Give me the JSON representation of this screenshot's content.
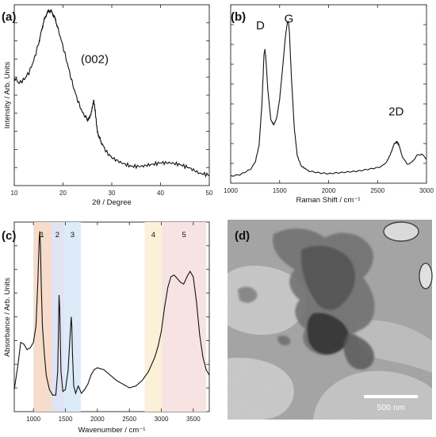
{
  "chart_data": [
    {
      "panel": "(a)",
      "type": "line",
      "xlabel": "2θ / Degree",
      "ylabel": "Intensity / Arb. Units",
      "xlim": [
        10,
        50
      ],
      "xticks": [
        10,
        20,
        30,
        40,
        50
      ],
      "ylim": [
        0,
        1
      ],
      "yticks_labeled": false,
      "annotations": [
        {
          "text": "(002)",
          "x": 26.5,
          "y": 0.62
        }
      ],
      "series": [
        {
          "x": [
            10,
            11,
            12,
            13,
            14,
            15,
            15.5,
            16,
            16.5,
            17,
            17.5,
            18,
            18.5,
            19,
            20,
            21,
            22,
            23,
            24,
            25,
            25.5,
            26,
            26.3,
            26.6,
            27,
            27.5,
            28,
            29,
            30,
            32,
            34,
            36,
            38,
            40,
            42,
            44,
            46,
            48,
            50
          ],
          "y": [
            0.6,
            0.57,
            0.59,
            0.63,
            0.7,
            0.8,
            0.86,
            0.92,
            0.96,
            0.985,
            0.985,
            0.965,
            0.93,
            0.88,
            0.78,
            0.67,
            0.56,
            0.47,
            0.4,
            0.36,
            0.37,
            0.43,
            0.47,
            0.41,
            0.3,
            0.25,
            0.22,
            0.17,
            0.14,
            0.11,
            0.09,
            0.09,
            0.1,
            0.11,
            0.11,
            0.1,
            0.08,
            0.05,
            0.04
          ]
        }
      ]
    },
    {
      "panel": "(b)",
      "type": "line",
      "xlabel": "Raman Shift / cm⁻¹",
      "ylabel": "",
      "xlim": [
        1000,
        3000
      ],
      "xticks": [
        1000,
        1500,
        2000,
        2500,
        3000
      ],
      "ylim": [
        0,
        1
      ],
      "yticks_labeled": false,
      "annotations": [
        {
          "text": "D",
          "x": 1335,
          "y": 0.85
        },
        {
          "text": "G",
          "x": 1595,
          "y": 0.88
        },
        {
          "text": "2D",
          "x": 2690,
          "y": 0.32
        }
      ],
      "series": [
        {
          "x": [
            1000,
            1100,
            1200,
            1250,
            1290,
            1320,
            1340,
            1350,
            1360,
            1380,
            1410,
            1440,
            1470,
            1500,
            1530,
            1560,
            1580,
            1590,
            1600,
            1620,
            1650,
            1680,
            1720,
            1800,
            1900,
            2000,
            2100,
            2200,
            2300,
            2400,
            2500,
            2550,
            2600,
            2640,
            2670,
            2700,
            2720,
            2750,
            2800,
            2850,
            2900,
            2950,
            3000
          ],
          "y": [
            0.02,
            0.03,
            0.06,
            0.1,
            0.2,
            0.45,
            0.73,
            0.76,
            0.7,
            0.52,
            0.35,
            0.32,
            0.36,
            0.47,
            0.65,
            0.84,
            0.92,
            0.92,
            0.86,
            0.6,
            0.3,
            0.14,
            0.08,
            0.05,
            0.04,
            0.035,
            0.04,
            0.045,
            0.05,
            0.06,
            0.07,
            0.08,
            0.11,
            0.16,
            0.21,
            0.22,
            0.2,
            0.14,
            0.09,
            0.1,
            0.14,
            0.15,
            0.12
          ]
        }
      ]
    },
    {
      "panel": "(c)",
      "type": "line",
      "xlabel": "Wavenumber / cm⁻¹",
      "ylabel": "Absorbance / Arb. Units",
      "xlim": [
        700,
        3750
      ],
      "xticks": [
        1000,
        1500,
        2000,
        2500,
        3000,
        3500
      ],
      "ylim": [
        0,
        1
      ],
      "yticks_labeled": false,
      "bands": [
        {
          "label": "1",
          "x0": 1000,
          "x1": 1270,
          "color": "#f7dccb"
        },
        {
          "label": "2",
          "x0": 1270,
          "x1": 1480,
          "color": "#dfe3f2"
        },
        {
          "label": "3",
          "x0": 1480,
          "x1": 1740,
          "color": "#dcebf7"
        },
        {
          "label": "4",
          "x0": 2740,
          "x1": 3010,
          "color": "#fbf0d8"
        },
        {
          "label": "5",
          "x0": 3010,
          "x1": 3700,
          "color": "#f7e4e2"
        }
      ],
      "series": [
        {
          "x": [
            700,
            760,
            800,
            850,
            900,
            950,
            1000,
            1040,
            1070,
            1090,
            1100,
            1110,
            1120,
            1140,
            1170,
            1200,
            1250,
            1300,
            1350,
            1380,
            1400,
            1410,
            1430,
            1460,
            1500,
            1540,
            1570,
            1590,
            1600,
            1610,
            1630,
            1660,
            1700,
            1750,
            1800,
            1850,
            1900,
            1950,
            2000,
            2100,
            2200,
            2300,
            2400,
            2500,
            2600,
            2700,
            2800,
            2900,
            2950,
            3000,
            3050,
            3100,
            3150,
            3200,
            3250,
            3300,
            3350,
            3400,
            3450,
            3500,
            3550,
            3600,
            3650,
            3700,
            3750
          ],
          "y": [
            0.1,
            0.24,
            0.36,
            0.35,
            0.32,
            0.33,
            0.36,
            0.45,
            0.7,
            0.93,
            0.97,
            0.88,
            0.7,
            0.45,
            0.3,
            0.18,
            0.1,
            0.07,
            0.07,
            0.2,
            0.62,
            0.55,
            0.2,
            0.09,
            0.1,
            0.2,
            0.38,
            0.5,
            0.45,
            0.3,
            0.12,
            0.08,
            0.12,
            0.08,
            0.1,
            0.13,
            0.18,
            0.21,
            0.22,
            0.21,
            0.18,
            0.15,
            0.13,
            0.11,
            0.12,
            0.15,
            0.2,
            0.28,
            0.34,
            0.42,
            0.55,
            0.66,
            0.72,
            0.73,
            0.71,
            0.69,
            0.68,
            0.72,
            0.75,
            0.72,
            0.58,
            0.4,
            0.28,
            0.21,
            0.18
          ]
        }
      ]
    }
  ],
  "micrograph": {
    "panel": "(d)",
    "scalebar_label": "500 nm"
  }
}
